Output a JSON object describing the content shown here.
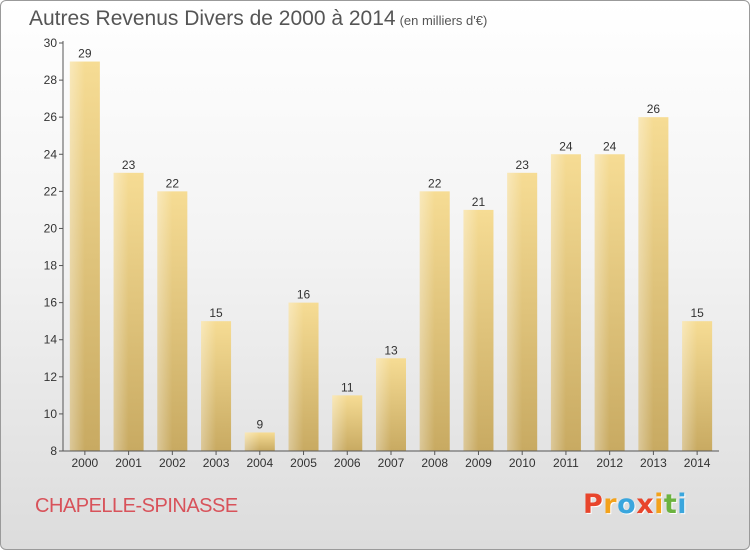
{
  "chart_data": {
    "type": "bar",
    "title": "Autres Revenus Divers de 2000 à 2014",
    "subtitle": "(en milliers d'€)",
    "categories": [
      "2000",
      "2001",
      "2002",
      "2003",
      "2004",
      "2005",
      "2006",
      "2007",
      "2008",
      "2009",
      "2010",
      "2011",
      "2012",
      "2013",
      "2014"
    ],
    "values": [
      29,
      23,
      22,
      15,
      9,
      16,
      11,
      13,
      22,
      21,
      23,
      24,
      24,
      26,
      15
    ],
    "ylim": [
      8,
      30
    ],
    "yticks": [
      8,
      10,
      12,
      14,
      16,
      18,
      20,
      22,
      24,
      26,
      28,
      30
    ],
    "grid": false,
    "bar_color": "#e7cc80"
  },
  "footer": {
    "commune": "CHAPELLE-SPINASSE",
    "commune_color": "#d8525a"
  },
  "logo": {
    "letters": [
      "P",
      "r",
      "o",
      "x",
      "i",
      "t",
      "i"
    ],
    "colors": [
      "#e8452c",
      "#f3a21b",
      "#3aa6dd",
      "#e8452c",
      "#f3a21b",
      "#6cb33f",
      "#3aa6dd"
    ],
    "alt": "Proxiti"
  }
}
